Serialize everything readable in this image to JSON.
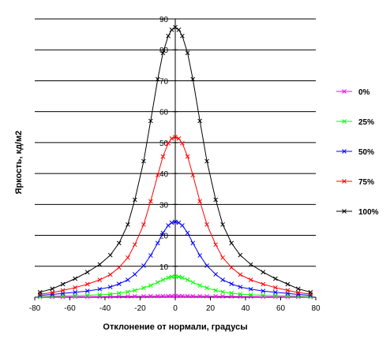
{
  "chart_data": {
    "type": "line",
    "title": "",
    "xlabel": "Отклонение от нормали, градусы",
    "ylabel": "Яркость, кд/м2",
    "xlim": [
      -80,
      80
    ],
    "ylim": [
      0,
      90
    ],
    "x_ticks": [
      -80,
      -60,
      -40,
      -20,
      0,
      20,
      40,
      60,
      80
    ],
    "y_ticks": [
      0,
      10,
      20,
      30,
      40,
      50,
      60,
      70,
      80,
      90
    ],
    "y_tick_labels": [
      "",
      "10",
      "20",
      "30",
      "40",
      "50",
      "60",
      "70",
      "80",
      "90"
    ],
    "grid": "horizontal",
    "legend_position": "right",
    "x": [
      -77,
      -70,
      -64,
      -57,
      -50,
      -43,
      -37,
      -32,
      -27,
      -23,
      -18,
      -14,
      -10,
      -7,
      -4,
      -2,
      0,
      2,
      4,
      7,
      10,
      14,
      18,
      23,
      27,
      32,
      37,
      43,
      50,
      57,
      64,
      70,
      77
    ],
    "series": [
      {
        "name": "0%",
        "color": "#ff00ff",
        "values": [
          0.1,
          0.1,
          0.1,
          0.15,
          0.15,
          0.2,
          0.2,
          0.25,
          0.25,
          0.3,
          0.3,
          0.35,
          0.35,
          0.4,
          0.4,
          0.4,
          0.4,
          0.4,
          0.4,
          0.4,
          0.35,
          0.35,
          0.3,
          0.3,
          0.25,
          0.25,
          0.2,
          0.2,
          0.15,
          0.15,
          0.1,
          0.1,
          0.1
        ]
      },
      {
        "name": "25%",
        "color": "#00ff00",
        "values": [
          0.2,
          0.3,
          0.4,
          0.5,
          0.6,
          0.8,
          1.0,
          1.3,
          1.7,
          2.2,
          3.0,
          3.8,
          4.8,
          5.6,
          6.3,
          6.6,
          6.7,
          6.6,
          6.3,
          5.6,
          4.8,
          3.8,
          3.0,
          2.2,
          1.7,
          1.3,
          1.0,
          0.8,
          0.6,
          0.5,
          0.4,
          0.3,
          0.2
        ]
      },
      {
        "name": "50%",
        "color": "#0000ff",
        "values": [
          0.6,
          0.9,
          1.2,
          1.6,
          2.0,
          2.6,
          3.3,
          4.3,
          5.6,
          7.4,
          10.2,
          13.5,
          17.5,
          20.8,
          23.2,
          24.1,
          24.4,
          24.1,
          23.2,
          20.8,
          17.5,
          13.5,
          10.2,
          7.4,
          5.6,
          4.3,
          3.3,
          2.6,
          2.0,
          1.6,
          1.2,
          0.9,
          0.6
        ]
      },
      {
        "name": "75%",
        "color": "#ff0000",
        "values": [
          1.0,
          1.5,
          2.2,
          3.1,
          4.2,
          5.6,
          7.3,
          9.6,
          12.8,
          17.0,
          23.5,
          31.0,
          39.5,
          45.5,
          49.8,
          51.3,
          51.8,
          51.3,
          49.8,
          45.5,
          39.5,
          31.0,
          23.5,
          17.0,
          12.8,
          9.6,
          7.3,
          5.6,
          4.2,
          3.1,
          2.2,
          1.5,
          1.0
        ]
      },
      {
        "name": "100%",
        "color": "#000000",
        "values": [
          1.6,
          2.7,
          4.2,
          6.0,
          8.1,
          10.6,
          13.6,
          17.5,
          23.5,
          31.5,
          44.0,
          57.0,
          70.5,
          79.0,
          84.5,
          86.5,
          87.3,
          86.5,
          84.5,
          79.0,
          70.5,
          57.0,
          44.0,
          31.5,
          23.5,
          17.5,
          13.6,
          10.6,
          8.1,
          6.0,
          4.2,
          2.7,
          1.6
        ]
      }
    ]
  }
}
